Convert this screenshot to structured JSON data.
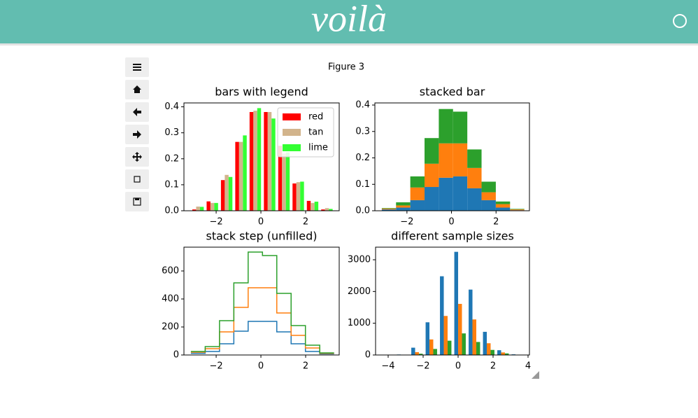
{
  "header": {
    "logo": "voilà"
  },
  "figure": {
    "title": "Figure 3"
  },
  "chart_data": [
    {
      "type": "histogram",
      "histtype": "bar",
      "title": "bars with legend",
      "bins": [
        -3.13,
        -2.49,
        -1.85,
        -1.21,
        -0.57,
        0.07,
        0.71,
        1.35,
        1.99,
        2.63,
        3.27
      ],
      "series": [
        {
          "name": "red",
          "color": "#ff0000",
          "values": [
            0.005,
            0.036,
            0.118,
            0.265,
            0.38,
            0.38,
            0.25,
            0.105,
            0.038,
            0.005
          ]
        },
        {
          "name": "tan",
          "color": "#d2b48c",
          "values": [
            0.016,
            0.03,
            0.138,
            0.265,
            0.385,
            0.38,
            0.22,
            0.11,
            0.03,
            0.01
          ]
        },
        {
          "name": "lime",
          "color": "#33ff33",
          "values": [
            0.015,
            0.03,
            0.13,
            0.29,
            0.395,
            0.355,
            0.225,
            0.112,
            0.035,
            0.007
          ]
        }
      ],
      "xlim": [
        -3.44,
        3.5
      ],
      "ylim": [
        0,
        0.415
      ],
      "xticks": [
        {
          "value": -2,
          "label": "−2"
        },
        0,
        2
      ],
      "yticks": [
        {
          "value": 0,
          "label": "0.0"
        },
        0.1,
        0.2,
        0.3,
        0.4
      ],
      "legend": "upper right"
    },
    {
      "type": "histogram",
      "histtype": "barstacked",
      "title": "stacked bar",
      "bins": [
        -3.13,
        -2.49,
        -1.85,
        -1.21,
        -0.57,
        0.07,
        0.71,
        1.35,
        1.99,
        2.63,
        3.27
      ],
      "series": [
        {
          "color": "#1f77b4",
          "values": [
            0.005,
            0.012,
            0.04,
            0.09,
            0.125,
            0.13,
            0.085,
            0.04,
            0.012,
            0.002
          ]
        },
        {
          "color": "#ff7f0e",
          "values": [
            0.003,
            0.008,
            0.048,
            0.088,
            0.13,
            0.125,
            0.077,
            0.03,
            0.013,
            0.003
          ]
        },
        {
          "color": "#2ca02c",
          "values": [
            0.002,
            0.012,
            0.042,
            0.097,
            0.13,
            0.12,
            0.07,
            0.04,
            0.01,
            0.002
          ]
        }
      ],
      "xlim": [
        -3.44,
        3.5
      ],
      "ylim": [
        0,
        0.408
      ],
      "xticks": [
        {
          "value": -2,
          "label": "−2"
        },
        0,
        2
      ],
      "yticks": [
        {
          "value": 0,
          "label": "0.0"
        },
        0.1,
        0.2,
        0.3,
        0.4
      ]
    },
    {
      "type": "histogram",
      "histtype": "step",
      "stacked": true,
      "title": "stack step (unfilled)",
      "bins": [
        -3.13,
        -2.49,
        -1.85,
        -1.21,
        -0.57,
        0.07,
        0.71,
        1.35,
        1.99,
        2.63,
        3.27
      ],
      "series": [
        {
          "color": "#1f77b4",
          "values": [
            12,
            25,
            80,
            170,
            240,
            240,
            165,
            80,
            25,
            8
          ]
        },
        {
          "color": "#ff7f0e",
          "values": [
            8,
            20,
            85,
            170,
            240,
            240,
            135,
            60,
            25,
            4
          ]
        },
        {
          "color": "#2ca02c",
          "values": [
            5,
            15,
            80,
            175,
            255,
            230,
            140,
            70,
            20,
            3
          ]
        }
      ],
      "xlim": [
        -3.44,
        3.5
      ],
      "ylim": [
        0,
        770
      ],
      "xticks": [
        {
          "value": -2,
          "label": "−2"
        },
        0,
        2
      ],
      "yticks": [
        0,
        200,
        400,
        600
      ]
    },
    {
      "type": "histogram",
      "histtype": "bar",
      "title": "different sample sizes",
      "bins": [
        -4.4,
        -3.58,
        -2.76,
        -1.94,
        -1.12,
        -0.3,
        0.52,
        1.34,
        2.16,
        2.98,
        3.8
      ],
      "series": [
        {
          "color": "#1f77b4",
          "values": [
            2,
            15,
            230,
            1030,
            2480,
            3250,
            2060,
            730,
            150,
            20
          ]
        },
        {
          "color": "#ff7f0e",
          "values": [
            1,
            8,
            90,
            490,
            1230,
            1610,
            1120,
            370,
            80,
            10
          ]
        },
        {
          "color": "#2ca02c",
          "values": [
            0,
            3,
            40,
            190,
            450,
            680,
            410,
            160,
            50,
            5
          ]
        }
      ],
      "xlim": [
        -4.72,
        4.08
      ],
      "ylim": [
        0,
        3397
      ],
      "xticks": [
        {
          "value": -4,
          "label": "−4"
        },
        {
          "value": -2,
          "label": "−2"
        },
        0,
        2,
        4
      ],
      "yticks": [
        0,
        1000,
        2000,
        3000
      ]
    }
  ]
}
